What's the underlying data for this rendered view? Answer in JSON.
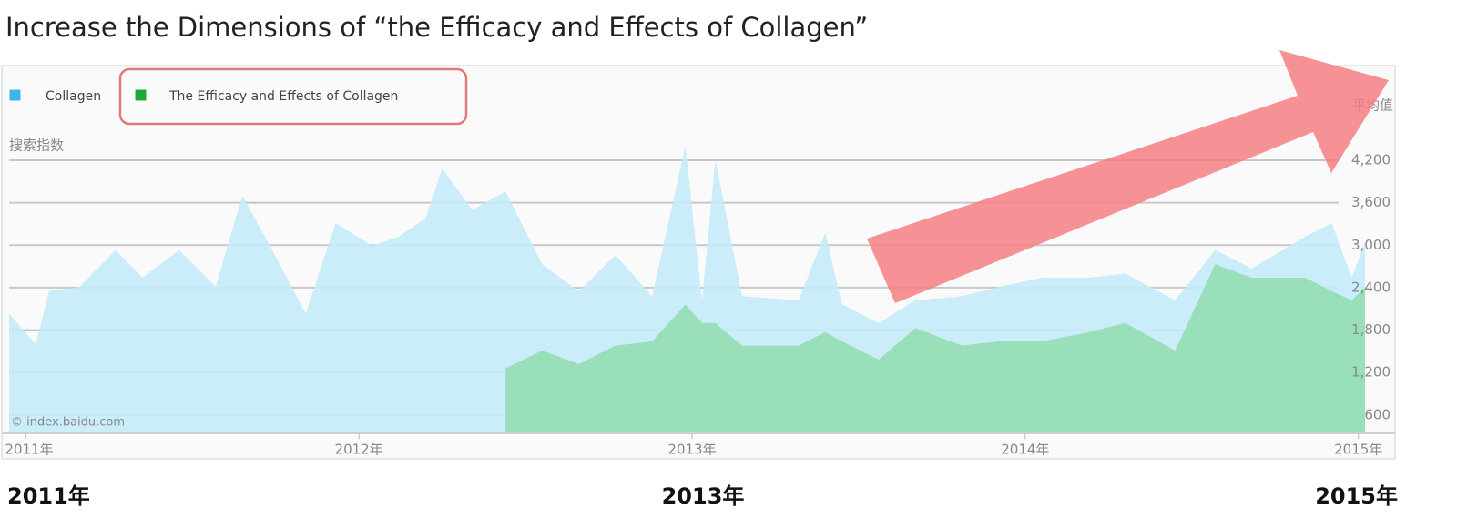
{
  "chart_data": {
    "type": "area",
    "title": "Increase the Dimensions of “the Efficacy and Effects of Collagen”",
    "y_label": "搜索指数",
    "average_label": "平均值",
    "source": "© index.baidu.com",
    "annotations": [
      "2011年",
      "2013年",
      "2015年"
    ],
    "x": [
      2010.95,
      2011.03,
      2011.07,
      2011.16,
      2011.27,
      2011.35,
      2011.46,
      2011.57,
      2011.65,
      2011.74,
      2011.84,
      2011.93,
      2012.04,
      2012.12,
      2012.2,
      2012.25,
      2012.34,
      2012.44,
      2012.55,
      2012.66,
      2012.77,
      2012.88,
      2012.98,
      2013.03,
      2013.07,
      2013.15,
      2013.32,
      2013.4,
      2013.45,
      2013.56,
      2013.67,
      2013.81,
      2013.92,
      2014.05,
      2014.19,
      2014.3,
      2014.45,
      2014.57,
      2014.68,
      2014.84,
      2014.92,
      2014.98,
      2015.02
    ],
    "series": [
      {
        "name": "Collagen",
        "color": "#c4ebf8",
        "marker_color": "#3db5e6",
        "values": [
          2030,
          1600,
          2350,
          2410,
          2930,
          2540,
          2930,
          2410,
          3700,
          2930,
          2030,
          3310,
          2990,
          3120,
          3380,
          4080,
          3500,
          3760,
          2730,
          2350,
          2860,
          2280,
          4400,
          2220,
          4210,
          2280,
          2220,
          3180,
          2160,
          1900,
          2220,
          2280,
          2410,
          2540,
          2540,
          2600,
          2220,
          2930,
          2670,
          3120,
          3310,
          2540,
          3050
        ]
      },
      {
        "name": "The Efficacy and Effects of Collagen",
        "color": "#93deb2",
        "marker_color": "#1da83a",
        "values": [
          null,
          null,
          null,
          null,
          null,
          null,
          null,
          null,
          null,
          null,
          null,
          null,
          null,
          null,
          null,
          null,
          null,
          1260,
          1510,
          1320,
          1580,
          1640,
          2160,
          1900,
          1900,
          1580,
          1580,
          1770,
          1640,
          1380,
          1830,
          1580,
          1640,
          1640,
          1770,
          1900,
          1510,
          2730,
          2540,
          2540,
          2350,
          2220,
          2410
        ]
      }
    ],
    "xlim": [
      2010.95,
      2015.05
    ],
    "xticks": [
      {
        "value": 2011,
        "label": "2011年"
      },
      {
        "value": 2012,
        "label": "2012年"
      },
      {
        "value": 2013,
        "label": "2013年"
      },
      {
        "value": 2014,
        "label": "2014年"
      },
      {
        "value": 2015,
        "label": "2015年"
      }
    ],
    "ylim": [
      340,
      4560
    ],
    "yticks": [
      600,
      {
        "value": 1200,
        "label": "1,200"
      },
      {
        "value": 1800,
        "label": "1,800"
      },
      {
        "value": 2400,
        "label": "2,400"
      },
      {
        "value": 3000,
        "label": "3,000"
      },
      {
        "value": 3600,
        "label": "3,600"
      },
      {
        "value": 4200,
        "label": "4,200"
      }
    ],
    "grid": true
  }
}
